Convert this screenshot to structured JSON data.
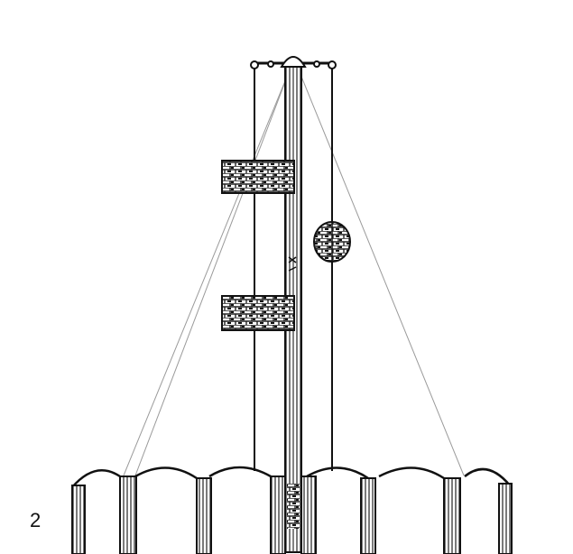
{
  "figure": {
    "number_label": "2",
    "colors": {
      "ink": "#111111",
      "hatch": "#555555",
      "guy_line": "#9a9a9a",
      "background": "#ffffff"
    },
    "parts": [
      "central-mast",
      "mast-cap",
      "crossbar",
      "left-rope",
      "right-rope",
      "upper-banner",
      "lower-banner",
      "ball-signal",
      "guy-lines",
      "ground-arches"
    ]
  }
}
